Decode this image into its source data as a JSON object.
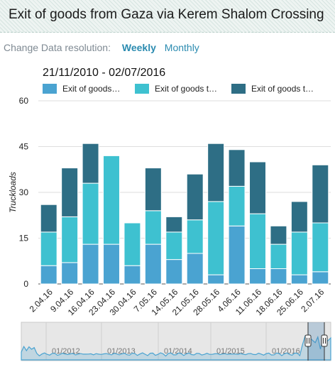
{
  "header": {
    "title": "Exit of goods from Gaza via Kerem Shalom Crossing"
  },
  "resolution": {
    "label": "Change Data resolution:",
    "options": [
      "Weekly",
      "Monthly"
    ],
    "selected": "Weekly"
  },
  "chart_data": {
    "type": "bar",
    "stacked": true,
    "title": "21/11/2010 - 02/07/2016",
    "ylabel": "Truckloads",
    "ylim": [
      0,
      60
    ],
    "yticks": [
      0,
      15,
      30,
      45,
      60
    ],
    "categories": [
      "2.04.16",
      "9.04.16",
      "16.04.16",
      "23.04.16",
      "30.04.16",
      "7.05.16",
      "14.05.16",
      "21.05.16",
      "28.05.16",
      "4.06.16",
      "11.06.16",
      "18.06.16",
      "25.06.16",
      "2.07.16"
    ],
    "series": [
      {
        "name": "Exit of goods…",
        "color": "#4aa3d1",
        "values": [
          6,
          7,
          13,
          13,
          6,
          13,
          8,
          10,
          3,
          19,
          5,
          5,
          3,
          4
        ]
      },
      {
        "name": "Exit of goods t…",
        "color": "#3ec1d0",
        "values": [
          11,
          15,
          20,
          29,
          14,
          11,
          9,
          11,
          24,
          13,
          18,
          8,
          14,
          16
        ]
      },
      {
        "name": "Exit of goods t…",
        "color": "#2e6e85",
        "values": [
          9,
          16,
          13,
          0,
          0,
          14,
          5,
          15,
          19,
          12,
          17,
          6,
          10,
          19
        ]
      }
    ],
    "grid": true,
    "legend": "top"
  },
  "navigator": {
    "labels": [
      "01/2012",
      "01/2013",
      "01/2014",
      "01/2015",
      "01/2016"
    ]
  }
}
